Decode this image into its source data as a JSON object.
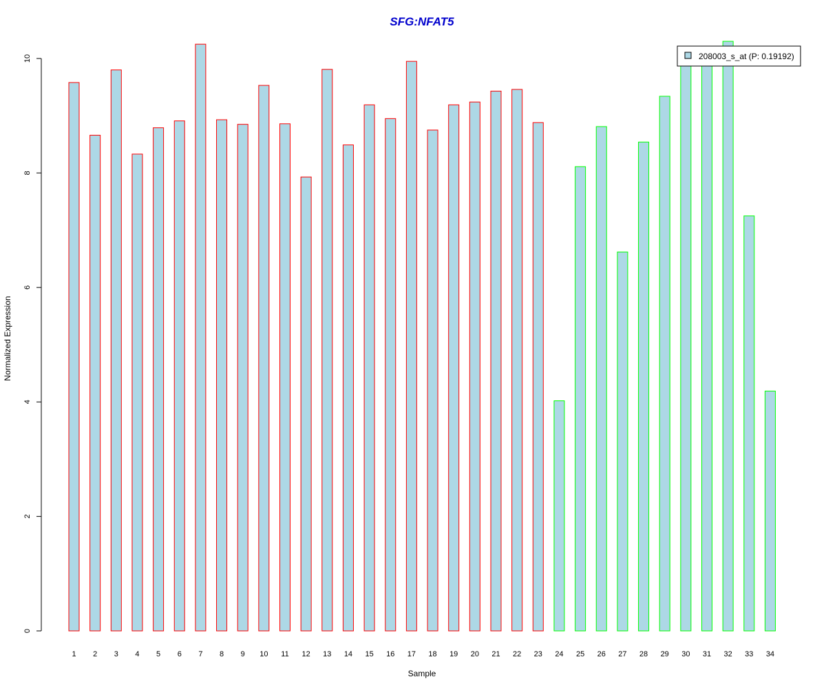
{
  "chart_data": {
    "type": "bar",
    "title": "SFG:NFAT5",
    "xlabel": "Sample",
    "ylabel": "Normalized Expression",
    "ylim": [
      0,
      10.3
    ],
    "yticks": [
      "0",
      "2",
      "4",
      "6",
      "8",
      "10"
    ],
    "categories": [
      "1",
      "2",
      "3",
      "4",
      "5",
      "6",
      "7",
      "8",
      "9",
      "10",
      "11",
      "12",
      "13",
      "14",
      "15",
      "16",
      "17",
      "18",
      "19",
      "20",
      "21",
      "22",
      "23",
      "24",
      "25",
      "26",
      "27",
      "28",
      "29",
      "30",
      "31",
      "32",
      "33",
      "34"
    ],
    "series": [
      {
        "name": "208003_s_at (P: 0.19192)",
        "values": [
          9.58,
          8.66,
          9.8,
          8.33,
          8.79,
          8.91,
          10.25,
          8.93,
          8.85,
          9.53,
          8.86,
          7.93,
          9.81,
          8.49,
          9.19,
          8.95,
          9.95,
          8.75,
          9.19,
          9.24,
          9.43,
          9.46,
          8.88,
          4.02,
          8.11,
          8.81,
          6.62,
          8.54,
          9.34,
          9.93,
          9.95,
          10.3,
          7.25,
          4.19
        ],
        "groups": [
          "red",
          "red",
          "red",
          "red",
          "red",
          "red",
          "red",
          "red",
          "red",
          "red",
          "red",
          "red",
          "red",
          "red",
          "red",
          "red",
          "red",
          "red",
          "red",
          "red",
          "red",
          "red",
          "red",
          "green",
          "green",
          "green",
          "green",
          "green",
          "green",
          "green",
          "green",
          "green",
          "green",
          "green"
        ]
      }
    ],
    "legend": {
      "position": "top-right",
      "label": "208003_s_at (P: 0.19192)"
    },
    "grid": false
  },
  "colors": {
    "bar_fill": "#add8e6",
    "group_red": "#ff0000",
    "group_green": "#00ff00",
    "title": "#0000cd",
    "axis": "#000000"
  }
}
